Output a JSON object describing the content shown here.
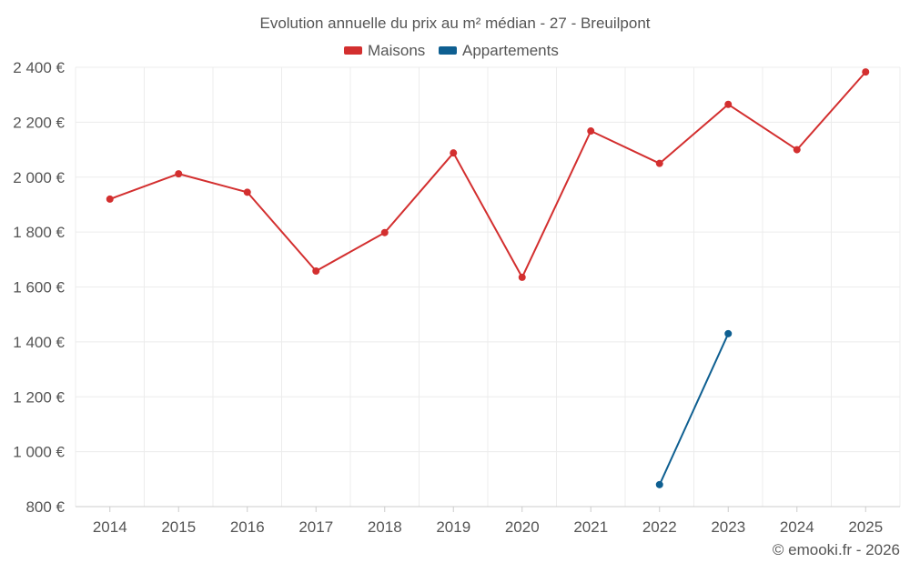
{
  "chart_data": {
    "type": "line",
    "title": "Evolution annuelle du prix au m² médian - 27 - Breuilpont",
    "x": [
      "2014",
      "2015",
      "2016",
      "2017",
      "2018",
      "2019",
      "2020",
      "2021",
      "2022",
      "2023",
      "2024",
      "2025"
    ],
    "series": [
      {
        "name": "Maisons",
        "color": "#d32f2f",
        "values": [
          1920,
          2012,
          1945,
          1658,
          1798,
          2088,
          1635,
          2168,
          2050,
          2265,
          2100,
          2383
        ]
      },
      {
        "name": "Appartements",
        "color": "#0e5f91",
        "values": [
          null,
          null,
          null,
          null,
          null,
          null,
          null,
          null,
          880,
          1430,
          null,
          null
        ]
      }
    ],
    "ylim": [
      800,
      2400
    ],
    "yticks": [
      800,
      1000,
      1200,
      1400,
      1600,
      1800,
      2000,
      2200,
      2400
    ],
    "ytick_labels": [
      "800 €",
      "1 000 €",
      "1 200 €",
      "1 400 €",
      "1 600 €",
      "1 800 €",
      "2 000 €",
      "2 200 €",
      "2 400 €"
    ],
    "grid": true,
    "legend_position": "top-center",
    "credit": "© emooki.fr - 2026",
    "axis_color": "#cccccc",
    "grid_color": "#ececec",
    "text_color": "#555555"
  }
}
